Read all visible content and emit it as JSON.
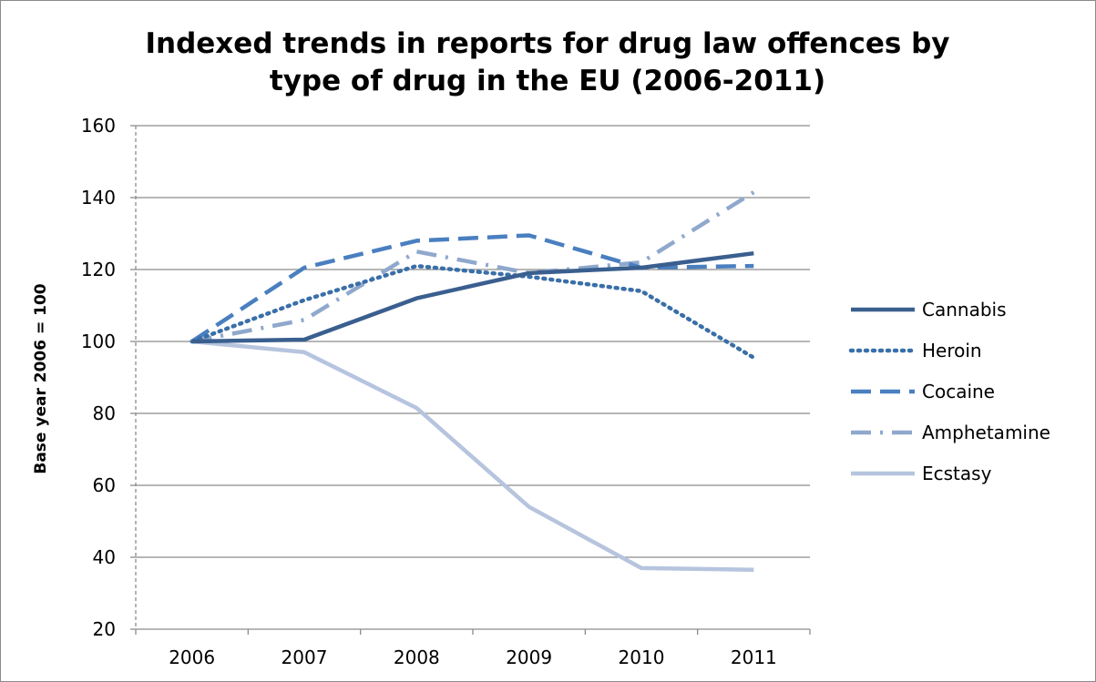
{
  "chart_data": {
    "type": "line",
    "title_lines": [
      "Indexed trends in reports for drug law offences by",
      "type of drug in the EU (2006-2011)"
    ],
    "xlabel": "",
    "ylabel": "Base year 2006 = 100",
    "categories": [
      "2006",
      "2007",
      "2008",
      "2009",
      "2010",
      "2011"
    ],
    "ylim": [
      20,
      160
    ],
    "yticks": [
      20,
      40,
      60,
      80,
      100,
      120,
      140,
      160
    ],
    "grid": true,
    "legend_position": "right",
    "series": [
      {
        "name": "Cannabis",
        "values": [
          100,
          100.5,
          112,
          119,
          120.5,
          124.5
        ],
        "color": "#3a5f8f",
        "dash": "solid"
      },
      {
        "name": "Heroin",
        "values": [
          100,
          111.5,
          121,
          118,
          114,
          95.5
        ],
        "color": "#3a6fa8",
        "dash": "dot"
      },
      {
        "name": "Cocaine",
        "values": [
          100,
          120.5,
          128,
          129.5,
          120.5,
          121
        ],
        "color": "#4a7fc0",
        "dash": "dash"
      },
      {
        "name": "Amphetamine",
        "values": [
          100,
          106,
          125,
          119,
          122,
          141.5
        ],
        "color": "#8fa8cc",
        "dash": "dashdot"
      },
      {
        "name": "Ecstasy",
        "values": [
          100,
          97,
          81.5,
          54,
          37,
          36.5
        ],
        "color": "#b6c4de",
        "dash": "solid"
      }
    ]
  }
}
